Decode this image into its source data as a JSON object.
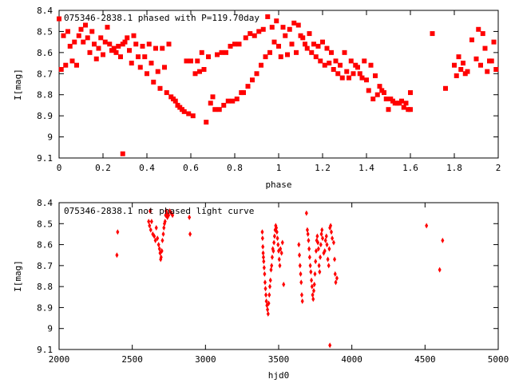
{
  "chart_data": [
    {
      "type": "scatter",
      "title": "075346-2838.1 phased with P=119.70day",
      "xlabel": "phase",
      "ylabel": "I[mag]",
      "xlim": [
        0,
        2
      ],
      "ylim": [
        8.4,
        9.1
      ],
      "y_inverted": true,
      "x_ticks": [
        "0",
        "0.2",
        "0.4",
        "0.6",
        "0.8",
        "1",
        "1.2",
        "1.4",
        "1.6",
        "1.8",
        "2"
      ],
      "y_ticks": [
        "8.4",
        "8.5",
        "8.6",
        "8.7",
        "8.8",
        "8.9",
        "9",
        "9.1"
      ],
      "color": "#ff0000",
      "marker": "square",
      "grid": false,
      "points": [
        [
          0.0,
          8.44
        ],
        [
          0.01,
          8.68
        ],
        [
          0.02,
          8.52
        ],
        [
          0.03,
          8.66
        ],
        [
          0.04,
          8.5
        ],
        [
          0.05,
          8.57
        ],
        [
          0.06,
          8.64
        ],
        [
          0.07,
          8.55
        ],
        [
          0.08,
          8.66
        ],
        [
          0.09,
          8.52
        ],
        [
          0.1,
          8.49
        ],
        [
          0.11,
          8.55
        ],
        [
          0.12,
          8.47
        ],
        [
          0.13,
          8.53
        ],
        [
          0.14,
          8.6
        ],
        [
          0.15,
          8.5
        ],
        [
          0.16,
          8.56
        ],
        [
          0.17,
          8.63
        ],
        [
          0.18,
          8.58
        ],
        [
          0.19,
          8.53
        ],
        [
          0.2,
          8.61
        ],
        [
          0.21,
          8.55
        ],
        [
          0.22,
          8.48
        ],
        [
          0.23,
          8.56
        ],
        [
          0.24,
          8.59
        ],
        [
          0.25,
          8.58
        ],
        [
          0.26,
          8.6
        ],
        [
          0.27,
          8.57
        ],
        [
          0.28,
          8.62
        ],
        [
          0.29,
          8.56
        ],
        [
          0.29,
          9.08
        ],
        [
          0.3,
          8.55
        ],
        [
          0.31,
          8.53
        ],
        [
          0.32,
          8.59
        ],
        [
          0.33,
          8.65
        ],
        [
          0.34,
          8.52
        ],
        [
          0.35,
          8.56
        ],
        [
          0.36,
          8.62
        ],
        [
          0.37,
          8.67
        ],
        [
          0.38,
          8.57
        ],
        [
          0.39,
          8.62
        ],
        [
          0.4,
          8.7
        ],
        [
          0.41,
          8.56
        ],
        [
          0.42,
          8.65
        ],
        [
          0.43,
          8.74
        ],
        [
          0.44,
          8.58
        ],
        [
          0.45,
          8.69
        ],
        [
          0.46,
          8.77
        ],
        [
          0.47,
          8.58
        ],
        [
          0.48,
          8.67
        ],
        [
          0.49,
          8.79
        ],
        [
          0.5,
          8.56
        ],
        [
          0.51,
          8.81
        ],
        [
          0.52,
          8.82
        ],
        [
          0.53,
          8.83
        ],
        [
          0.54,
          8.85
        ],
        [
          0.55,
          8.86
        ],
        [
          0.56,
          8.87
        ],
        [
          0.57,
          8.88
        ],
        [
          0.58,
          8.64
        ],
        [
          0.59,
          8.89
        ],
        [
          0.6,
          8.64
        ],
        [
          0.61,
          8.9
        ],
        [
          0.62,
          8.7
        ],
        [
          0.63,
          8.64
        ],
        [
          0.64,
          8.69
        ],
        [
          0.65,
          8.6
        ],
        [
          0.66,
          8.68
        ],
        [
          0.67,
          8.93
        ],
        [
          0.68,
          8.62
        ],
        [
          0.69,
          8.84
        ],
        [
          0.7,
          8.81
        ],
        [
          0.71,
          8.87
        ],
        [
          0.72,
          8.61
        ],
        [
          0.73,
          8.87
        ],
        [
          0.74,
          8.6
        ],
        [
          0.75,
          8.85
        ],
        [
          0.76,
          8.6
        ],
        [
          0.77,
          8.83
        ],
        [
          0.78,
          8.57
        ],
        [
          0.79,
          8.83
        ],
        [
          0.8,
          8.56
        ],
        [
          0.81,
          8.82
        ],
        [
          0.82,
          8.56
        ],
        [
          0.83,
          8.79
        ],
        [
          0.84,
          8.79
        ],
        [
          0.85,
          8.53
        ],
        [
          0.86,
          8.76
        ],
        [
          0.87,
          8.51
        ],
        [
          0.88,
          8.73
        ],
        [
          0.89,
          8.52
        ],
        [
          0.9,
          8.7
        ],
        [
          0.91,
          8.5
        ],
        [
          0.92,
          8.66
        ],
        [
          0.93,
          8.49
        ],
        [
          0.94,
          8.62
        ],
        [
          0.95,
          8.43
        ],
        [
          0.96,
          8.6
        ],
        [
          0.97,
          8.48
        ],
        [
          0.98,
          8.55
        ],
        [
          0.99,
          8.45
        ],
        [
          1.0,
          8.57
        ],
        [
          1.01,
          8.62
        ],
        [
          1.02,
          8.48
        ],
        [
          1.03,
          8.52
        ],
        [
          1.04,
          8.61
        ],
        [
          1.05,
          8.49
        ],
        [
          1.06,
          8.56
        ],
        [
          1.07,
          8.46
        ],
        [
          1.08,
          8.6
        ],
        [
          1.09,
          8.47
        ],
        [
          1.1,
          8.52
        ],
        [
          1.11,
          8.53
        ],
        [
          1.12,
          8.56
        ],
        [
          1.13,
          8.58
        ],
        [
          1.14,
          8.51
        ],
        [
          1.15,
          8.6
        ],
        [
          1.16,
          8.56
        ],
        [
          1.17,
          8.62
        ],
        [
          1.18,
          8.57
        ],
        [
          1.19,
          8.64
        ],
        [
          1.2,
          8.55
        ],
        [
          1.21,
          8.66
        ],
        [
          1.22,
          8.58
        ],
        [
          1.23,
          8.65
        ],
        [
          1.24,
          8.6
        ],
        [
          1.25,
          8.68
        ],
        [
          1.26,
          8.64
        ],
        [
          1.27,
          8.7
        ],
        [
          1.28,
          8.66
        ],
        [
          1.29,
          8.72
        ],
        [
          1.3,
          8.6
        ],
        [
          1.31,
          8.69
        ],
        [
          1.32,
          8.72
        ],
        [
          1.33,
          8.64
        ],
        [
          1.34,
          8.7
        ],
        [
          1.35,
          8.66
        ],
        [
          1.36,
          8.67
        ],
        [
          1.37,
          8.7
        ],
        [
          1.38,
          8.72
        ],
        [
          1.39,
          8.64
        ],
        [
          1.4,
          8.73
        ],
        [
          1.41,
          8.78
        ],
        [
          1.42,
          8.66
        ],
        [
          1.43,
          8.82
        ],
        [
          1.44,
          8.71
        ],
        [
          1.45,
          8.8
        ],
        [
          1.46,
          8.76
        ],
        [
          1.47,
          8.78
        ],
        [
          1.48,
          8.79
        ],
        [
          1.49,
          8.82
        ],
        [
          1.5,
          8.87
        ],
        [
          1.51,
          8.82
        ],
        [
          1.52,
          8.83
        ],
        [
          1.53,
          8.84
        ],
        [
          1.54,
          8.84
        ],
        [
          1.55,
          8.84
        ],
        [
          1.56,
          8.83
        ],
        [
          1.57,
          8.86
        ],
        [
          1.58,
          8.84
        ],
        [
          1.59,
          8.87
        ],
        [
          1.6,
          8.87
        ],
        [
          1.6,
          8.79
        ],
        [
          1.7,
          8.51
        ],
        [
          1.76,
          8.77
        ],
        [
          1.8,
          8.66
        ],
        [
          1.81,
          8.71
        ],
        [
          1.82,
          8.62
        ],
        [
          1.83,
          8.68
        ],
        [
          1.84,
          8.65
        ],
        [
          1.85,
          8.7
        ],
        [
          1.86,
          8.69
        ],
        [
          1.88,
          8.54
        ],
        [
          1.9,
          8.63
        ],
        [
          1.91,
          8.49
        ],
        [
          1.92,
          8.66
        ],
        [
          1.93,
          8.51
        ],
        [
          1.94,
          8.58
        ],
        [
          1.95,
          8.69
        ],
        [
          1.96,
          8.64
        ],
        [
          1.97,
          8.64
        ],
        [
          1.98,
          8.55
        ],
        [
          1.99,
          8.68
        ]
      ]
    },
    {
      "type": "scatter",
      "title": "075346-2838.1 not phased light curve",
      "xlabel": "hjd0",
      "ylabel": "I[mag]",
      "xlim": [
        2000,
        5000
      ],
      "ylim": [
        8.4,
        9.1
      ],
      "y_inverted": true,
      "x_ticks": [
        "2000",
        "2500",
        "3000",
        "3500",
        "4000",
        "4500",
        "5000"
      ],
      "y_ticks": [
        "8.4",
        "8.5",
        "8.6",
        "8.7",
        "8.8",
        "8.9",
        "9",
        "9.1"
      ],
      "color": "#ff0000",
      "marker": "diamond",
      "grid": false,
      "points": [
        [
          2395,
          8.65
        ],
        [
          2400,
          8.54
        ],
        [
          2612,
          8.49
        ],
        [
          2618,
          8.51
        ],
        [
          2622,
          8.44
        ],
        [
          2626,
          8.53
        ],
        [
          2632,
          8.49
        ],
        [
          2640,
          8.55
        ],
        [
          2650,
          8.56
        ],
        [
          2658,
          8.58
        ],
        [
          2664,
          8.52
        ],
        [
          2672,
          8.57
        ],
        [
          2680,
          8.6
        ],
        [
          2686,
          8.62
        ],
        [
          2690,
          8.64
        ],
        [
          2694,
          8.67
        ],
        [
          2697,
          8.66
        ],
        [
          2702,
          8.63
        ],
        [
          2706,
          8.58
        ],
        [
          2712,
          8.55
        ],
        [
          2716,
          8.52
        ],
        [
          2720,
          8.5
        ],
        [
          2724,
          8.49
        ],
        [
          2728,
          8.46
        ],
        [
          2731,
          8.44
        ],
        [
          2735,
          8.45
        ],
        [
          2740,
          8.47
        ],
        [
          2748,
          8.46
        ],
        [
          2756,
          8.44
        ],
        [
          2766,
          8.45
        ],
        [
          2775,
          8.46
        ],
        [
          2890,
          8.47
        ],
        [
          2895,
          8.55
        ],
        [
          3388,
          8.54
        ],
        [
          3390,
          8.57
        ],
        [
          3392,
          8.61
        ],
        [
          3394,
          8.64
        ],
        [
          3396,
          8.66
        ],
        [
          3398,
          8.68
        ],
        [
          3401,
          8.71
        ],
        [
          3404,
          8.74
        ],
        [
          3407,
          8.78
        ],
        [
          3410,
          8.81
        ],
        [
          3413,
          8.84
        ],
        [
          3416,
          8.87
        ],
        [
          3420,
          8.89
        ],
        [
          3424,
          8.91
        ],
        [
          3428,
          8.93
        ],
        [
          3432,
          8.88
        ],
        [
          3436,
          8.84
        ],
        [
          3440,
          8.8
        ],
        [
          3444,
          8.77
        ],
        [
          3448,
          8.72
        ],
        [
          3452,
          8.7
        ],
        [
          3456,
          8.66
        ],
        [
          3460,
          8.62
        ],
        [
          3464,
          8.63
        ],
        [
          3468,
          8.59
        ],
        [
          3472,
          8.56
        ],
        [
          3476,
          8.53
        ],
        [
          3480,
          8.51
        ],
        [
          3484,
          8.52
        ],
        [
          3488,
          8.54
        ],
        [
          3492,
          8.57
        ],
        [
          3496,
          8.6
        ],
        [
          3500,
          8.63
        ],
        [
          3504,
          8.67
        ],
        [
          3508,
          8.7
        ],
        [
          3512,
          8.62
        ],
        [
          3520,
          8.64
        ],
        [
          3526,
          8.59
        ],
        [
          3534,
          8.79
        ],
        [
          3638,
          8.6
        ],
        [
          3642,
          8.65
        ],
        [
          3646,
          8.7
        ],
        [
          3650,
          8.74
        ],
        [
          3654,
          8.78
        ],
        [
          3658,
          8.84
        ],
        [
          3662,
          8.87
        ],
        [
          3690,
          8.45
        ],
        [
          3696,
          8.53
        ],
        [
          3700,
          8.55
        ],
        [
          3704,
          8.58
        ],
        [
          3708,
          8.62
        ],
        [
          3712,
          8.66
        ],
        [
          3716,
          8.7
        ],
        [
          3720,
          8.73
        ],
        [
          3724,
          8.77
        ],
        [
          3728,
          8.8
        ],
        [
          3732,
          8.84
        ],
        [
          3736,
          8.86
        ],
        [
          3740,
          8.82
        ],
        [
          3744,
          8.79
        ],
        [
          3748,
          8.74
        ],
        [
          3752,
          8.68
        ],
        [
          3756,
          8.63
        ],
        [
          3760,
          8.58
        ],
        [
          3764,
          8.56
        ],
        [
          3768,
          8.59
        ],
        [
          3772,
          8.62
        ],
        [
          3776,
          8.7
        ],
        [
          3780,
          8.73
        ],
        [
          3784,
          8.66
        ],
        [
          3788,
          8.6
        ],
        [
          3792,
          8.55
        ],
        [
          3796,
          8.53
        ],
        [
          3800,
          8.57
        ],
        [
          3808,
          8.64
        ],
        [
          3815,
          8.63
        ],
        [
          3820,
          8.58
        ],
        [
          3826,
          8.56
        ],
        [
          3830,
          8.6
        ],
        [
          3836,
          8.67
        ],
        [
          3842,
          8.7
        ],
        [
          3846,
          8.62
        ],
        [
          3850,
          8.52
        ],
        [
          3855,
          8.51
        ],
        [
          3860,
          8.54
        ],
        [
          3866,
          8.57
        ],
        [
          3850,
          9.08
        ],
        [
          3876,
          8.59
        ],
        [
          3882,
          8.67
        ],
        [
          3886,
          8.74
        ],
        [
          3890,
          8.78
        ],
        [
          3898,
          8.76
        ],
        [
          4510,
          8.51
        ],
        [
          4600,
          8.72
        ],
        [
          4620,
          8.58
        ]
      ]
    }
  ]
}
